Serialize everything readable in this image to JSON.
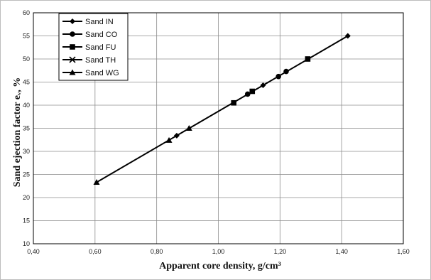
{
  "chart_data": {
    "type": "line",
    "title": "",
    "xlabel": "Apparent core density, g/cm³",
    "ylabel": "Sand ejection factor eᵥ, %",
    "xlim": [
      0.4,
      1.6
    ],
    "ylim": [
      10,
      60
    ],
    "x_ticks": [
      "0,40",
      "0,60",
      "0,80",
      "1,00",
      "1,20",
      "1,40",
      "1,60"
    ],
    "y_ticks": [
      "10",
      "15",
      "20",
      "25",
      "30",
      "35",
      "40",
      "45",
      "50",
      "55",
      "60"
    ],
    "grid": true,
    "legend_position": "top-left",
    "line_color": "#000000",
    "series": [
      {
        "name": "Sand IN",
        "marker": "diamond",
        "x": [
          0.865,
          1.145,
          1.42
        ],
        "y": [
          33.4,
          44.3,
          55.0
        ]
      },
      {
        "name": "Sand CO",
        "marker": "circle",
        "x": [
          1.095,
          1.195,
          1.22
        ],
        "y": [
          42.4,
          46.2,
          47.3
        ]
      },
      {
        "name": "Sand FU",
        "marker": "square",
        "x": [
          1.05,
          1.11,
          1.29
        ],
        "y": [
          40.5,
          43.0,
          50.0
        ]
      },
      {
        "name": "Sand TH",
        "marker": "cross",
        "x": [],
        "y": []
      },
      {
        "name": "Sand WG",
        "marker": "triangle",
        "x": [
          0.605,
          0.84,
          0.905
        ],
        "y": [
          23.3,
          32.4,
          35.0
        ]
      }
    ],
    "trendline": {
      "x": [
        0.605,
        1.42
      ],
      "y": [
        23.3,
        55.0
      ]
    }
  }
}
